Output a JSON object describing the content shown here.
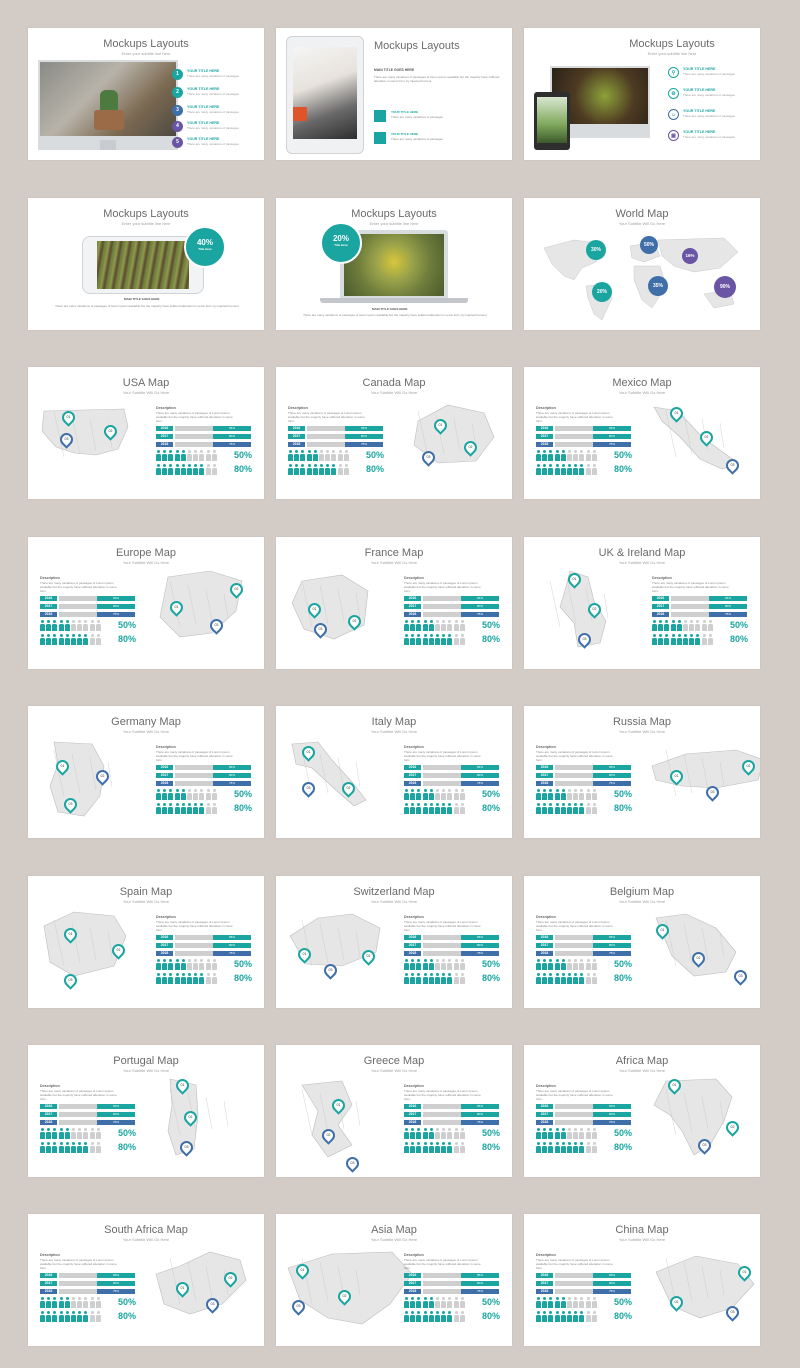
{
  "mockups": {
    "title": "Mockups Layouts",
    "subtitle": "Enter your subtitle line here",
    "step_title": "YOUR TITLE HERE",
    "step_desc": "There are many variations of passages",
    "steps": [
      "1",
      "2",
      "3",
      "4",
      "5"
    ],
    "main_title": "MAIN TITLE GOES HERE",
    "circle1_value": "40%",
    "circle1_label": "Title Here",
    "circle2_value": "20%",
    "circle2_label": "Title Here",
    "body": "There are many variations of passages of lorem ipsum available but the majority have suffered alteration in some form, by injected humour"
  },
  "world": {
    "title": "World Map",
    "subtitle": "Your Subtitle Will Go Here",
    "bubbles": [
      "30%",
      "50%",
      "16%",
      "20%",
      "35%",
      "90%"
    ]
  },
  "map_subtitle": "Your Subtitle Will Go Here",
  "stats": {
    "description": "Description",
    "description_text": "There are many variations of passages of Lorem Ipsum available but the majority have suffered alteration in some form.",
    "years": [
      "2016",
      "2017",
      "2018"
    ],
    "bar_values": [
      "65%",
      "80%",
      "75%"
    ],
    "percent1": "50%",
    "percent2": "80%"
  },
  "maps": [
    {
      "title": "USA Map",
      "pins": [
        "01",
        "02",
        "03"
      ]
    },
    {
      "title": "Canada Map",
      "pins": [
        "01",
        "02",
        "03"
      ]
    },
    {
      "title": "Mexico Map",
      "pins": [
        "01",
        "02",
        "03"
      ]
    },
    {
      "title": "Europe Map",
      "pins": [
        "01",
        "02",
        "03"
      ]
    },
    {
      "title": "France Map",
      "pins": [
        "01",
        "02",
        "03"
      ]
    },
    {
      "title": "UK & Ireland Map",
      "pins": [
        "01",
        "02",
        "03"
      ]
    },
    {
      "title": "Germany Map",
      "pins": [
        "01",
        "02",
        "03"
      ]
    },
    {
      "title": "Italy Map",
      "pins": [
        "01",
        "02",
        "03"
      ]
    },
    {
      "title": "Russia Map",
      "pins": [
        "01",
        "02",
        "03"
      ]
    },
    {
      "title": "Spain Map",
      "pins": [
        "01",
        "02",
        "03"
      ]
    },
    {
      "title": "Switzerland Map",
      "pins": [
        "01",
        "02",
        "03"
      ]
    },
    {
      "title": "Belgium Map",
      "pins": [
        "01",
        "02",
        "03"
      ]
    },
    {
      "title": "Portugal Map",
      "pins": [
        "01",
        "02",
        "03"
      ]
    },
    {
      "title": "Greece Map",
      "pins": [
        "01",
        "02",
        "03"
      ]
    },
    {
      "title": "Africa Map",
      "pins": [
        "01",
        "02",
        "03"
      ]
    },
    {
      "title": "South Africa Map",
      "pins": [
        "01",
        "02",
        "03"
      ]
    },
    {
      "title": "Asia Map",
      "pins": [
        "01",
        "02",
        "03"
      ]
    },
    {
      "title": "China Map",
      "pins": [
        "01",
        "02",
        "03"
      ]
    }
  ],
  "colors": {
    "background": "#d3ccc6",
    "teal": "#1aa5a0",
    "blue": "#3f6fa8",
    "purple": "#6a55a4",
    "grey": "#cfcfcf",
    "map_fill": "#e6e6e6"
  }
}
